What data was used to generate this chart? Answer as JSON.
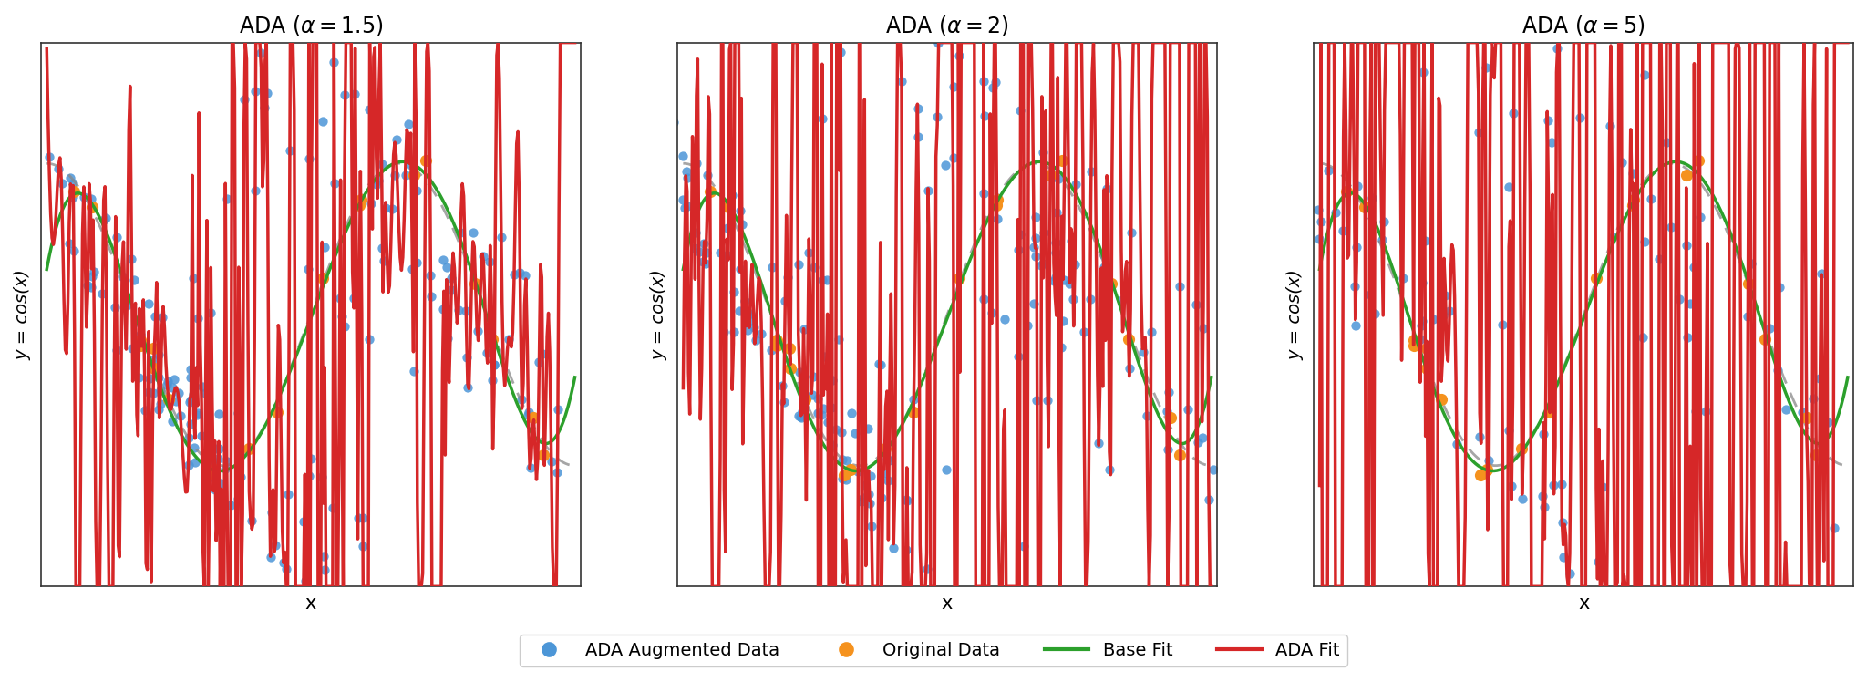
{
  "titles": [
    "ADA ($\\alpha = 1.5$)",
    "ADA ($\\alpha = 2$)",
    "ADA ($\\alpha = 5$)"
  ],
  "ylabel": "y = cos(x)",
  "xlabel": "x",
  "blue_color": "#4C96D7",
  "orange_color": "#F5921E",
  "green_color": "#2CA02C",
  "red_color": "#D62728",
  "gray_color": "#888888",
  "bg_color": "#ffffff",
  "n_original": 20,
  "seed": 42,
  "legend_labels": [
    "ADA Augmented Data",
    "Original Data",
    "Base Fit",
    "ADA Fit"
  ]
}
